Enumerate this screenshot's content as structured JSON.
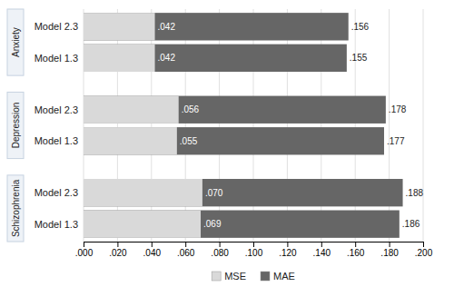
{
  "chart_data": {
    "type": "bar",
    "orientation": "horizontal",
    "groups": [
      "Anxiety",
      "Depression",
      "Schizophrenia"
    ],
    "categories": [
      "Model 2.3",
      "Model 1.3",
      "Model 2.3",
      "Model 1.3",
      "Model 2.3",
      "Model 1.3"
    ],
    "series": [
      {
        "name": "MSE",
        "color": "#d9d9d9",
        "values": [
          0.042,
          0.042,
          0.056,
          0.055,
          0.07,
          0.069
        ],
        "value_labels": [
          ".042",
          ".042",
          ".056",
          ".055",
          ".070",
          ".069"
        ]
      },
      {
        "name": "MAE",
        "color": "#666666",
        "values": [
          0.156,
          0.155,
          0.178,
          0.177,
          0.188,
          0.186
        ],
        "value_labels": [
          ".156",
          ".155",
          ".178",
          ".177",
          ".188",
          ".186"
        ]
      }
    ],
    "xlim": [
      0,
      0.2
    ],
    "xticks": [
      {
        "value": 0,
        "label": ".000"
      },
      {
        "value": 0.02,
        "label": ".020"
      },
      {
        "value": 0.04,
        "label": ".040"
      },
      {
        "value": 0.06,
        "label": ".060"
      },
      {
        "value": 0.08,
        "label": ".080"
      },
      {
        "value": 0.1,
        "label": ".100"
      },
      {
        "value": 0.12,
        "label": ".120"
      },
      {
        "value": 0.14,
        "label": ".140"
      },
      {
        "value": 0.16,
        "label": ".160"
      },
      {
        "value": 0.18,
        "label": ".180"
      },
      {
        "value": 0.2,
        "label": ".200"
      }
    ],
    "grid": true,
    "data_labels": true,
    "legend": "bottom"
  }
}
